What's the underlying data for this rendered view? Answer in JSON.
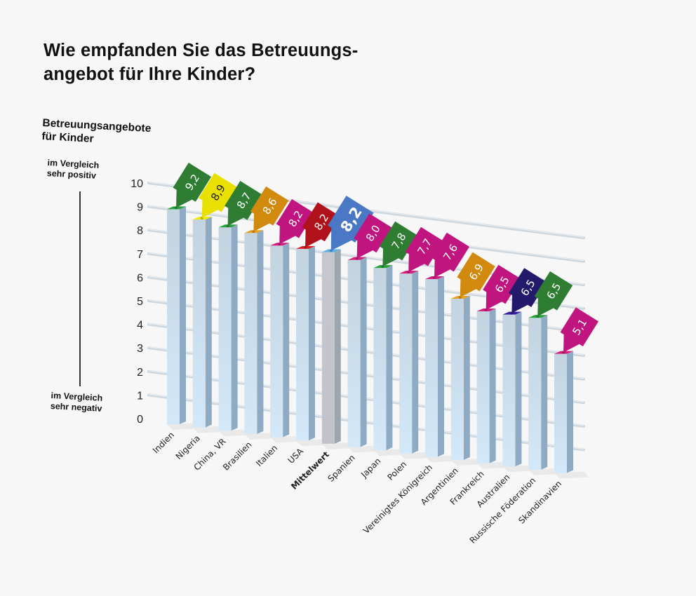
{
  "title_lines": [
    "Wie empfanden Sie das Betreuungs-",
    "angebot für Ihre Kinder?"
  ],
  "axis_title_lines": [
    "Betreuungsangebote",
    "für Kinder"
  ],
  "scale_top_label": [
    "im Vergleich",
    "sehr positiv"
  ],
  "scale_bottom_label": [
    "im Vergleich",
    "sehr negativ"
  ],
  "chart_data": {
    "type": "bar",
    "title": "Wie empfanden Sie das Betreuungsangebot für Ihre Kinder?",
    "xlabel": "",
    "ylabel": "Betreuungsangebote für Kinder",
    "ylim": [
      0,
      10
    ],
    "yticks": [
      0,
      1,
      2,
      3,
      4,
      5,
      6,
      7,
      8,
      9,
      10
    ],
    "grid": true,
    "categories": [
      "Indien",
      "Nigeria",
      "China, VR",
      "Brasilien",
      "Italien",
      "USA",
      "Mittelwert",
      "Spanien",
      "Japan",
      "Polen",
      "Vereinigtes Königreich",
      "Argentinien",
      "Frankreich",
      "Australien",
      "Russische Föderation",
      "Skandinavien"
    ],
    "values": [
      9.2,
      8.9,
      8.7,
      8.6,
      8.2,
      8.2,
      8.2,
      8.0,
      7.8,
      7.7,
      7.6,
      6.9,
      6.5,
      6.5,
      6.5,
      5.1
    ],
    "value_labels": [
      "9,2",
      "8,9",
      "8,7",
      "8,6",
      "8,2",
      "8,2",
      "8,2",
      "8,0",
      "7,8",
      "7,7",
      "7,6",
      "6,9",
      "6,5",
      "6,5",
      "6,5",
      "5,1"
    ],
    "tag_colors": [
      "#2e7d32",
      "#e8e000",
      "#2e7d32",
      "#d18a0e",
      "#c0157e",
      "#b0121b",
      "#4a78c4",
      "#c0157e",
      "#2e7d32",
      "#c0157e",
      "#c0157e",
      "#d18a0e",
      "#c0157e",
      "#241a6b",
      "#2e7d32",
      "#c0157e"
    ],
    "cap_colors": [
      "#27a13a",
      "#f2ea00",
      "#27a13a",
      "#e8a021",
      "#d6207f",
      "#d81c22",
      "#5aaee6",
      "#d6207f",
      "#27a13a",
      "#d6207f",
      "#d6207f",
      "#e8a021",
      "#d6207f",
      "#3a1fa0",
      "#27a13a",
      "#d6207f"
    ],
    "highlight_index": 6,
    "bar_color": "#cfe4f4",
    "highlight_bar_color": "#c4c4cc"
  }
}
